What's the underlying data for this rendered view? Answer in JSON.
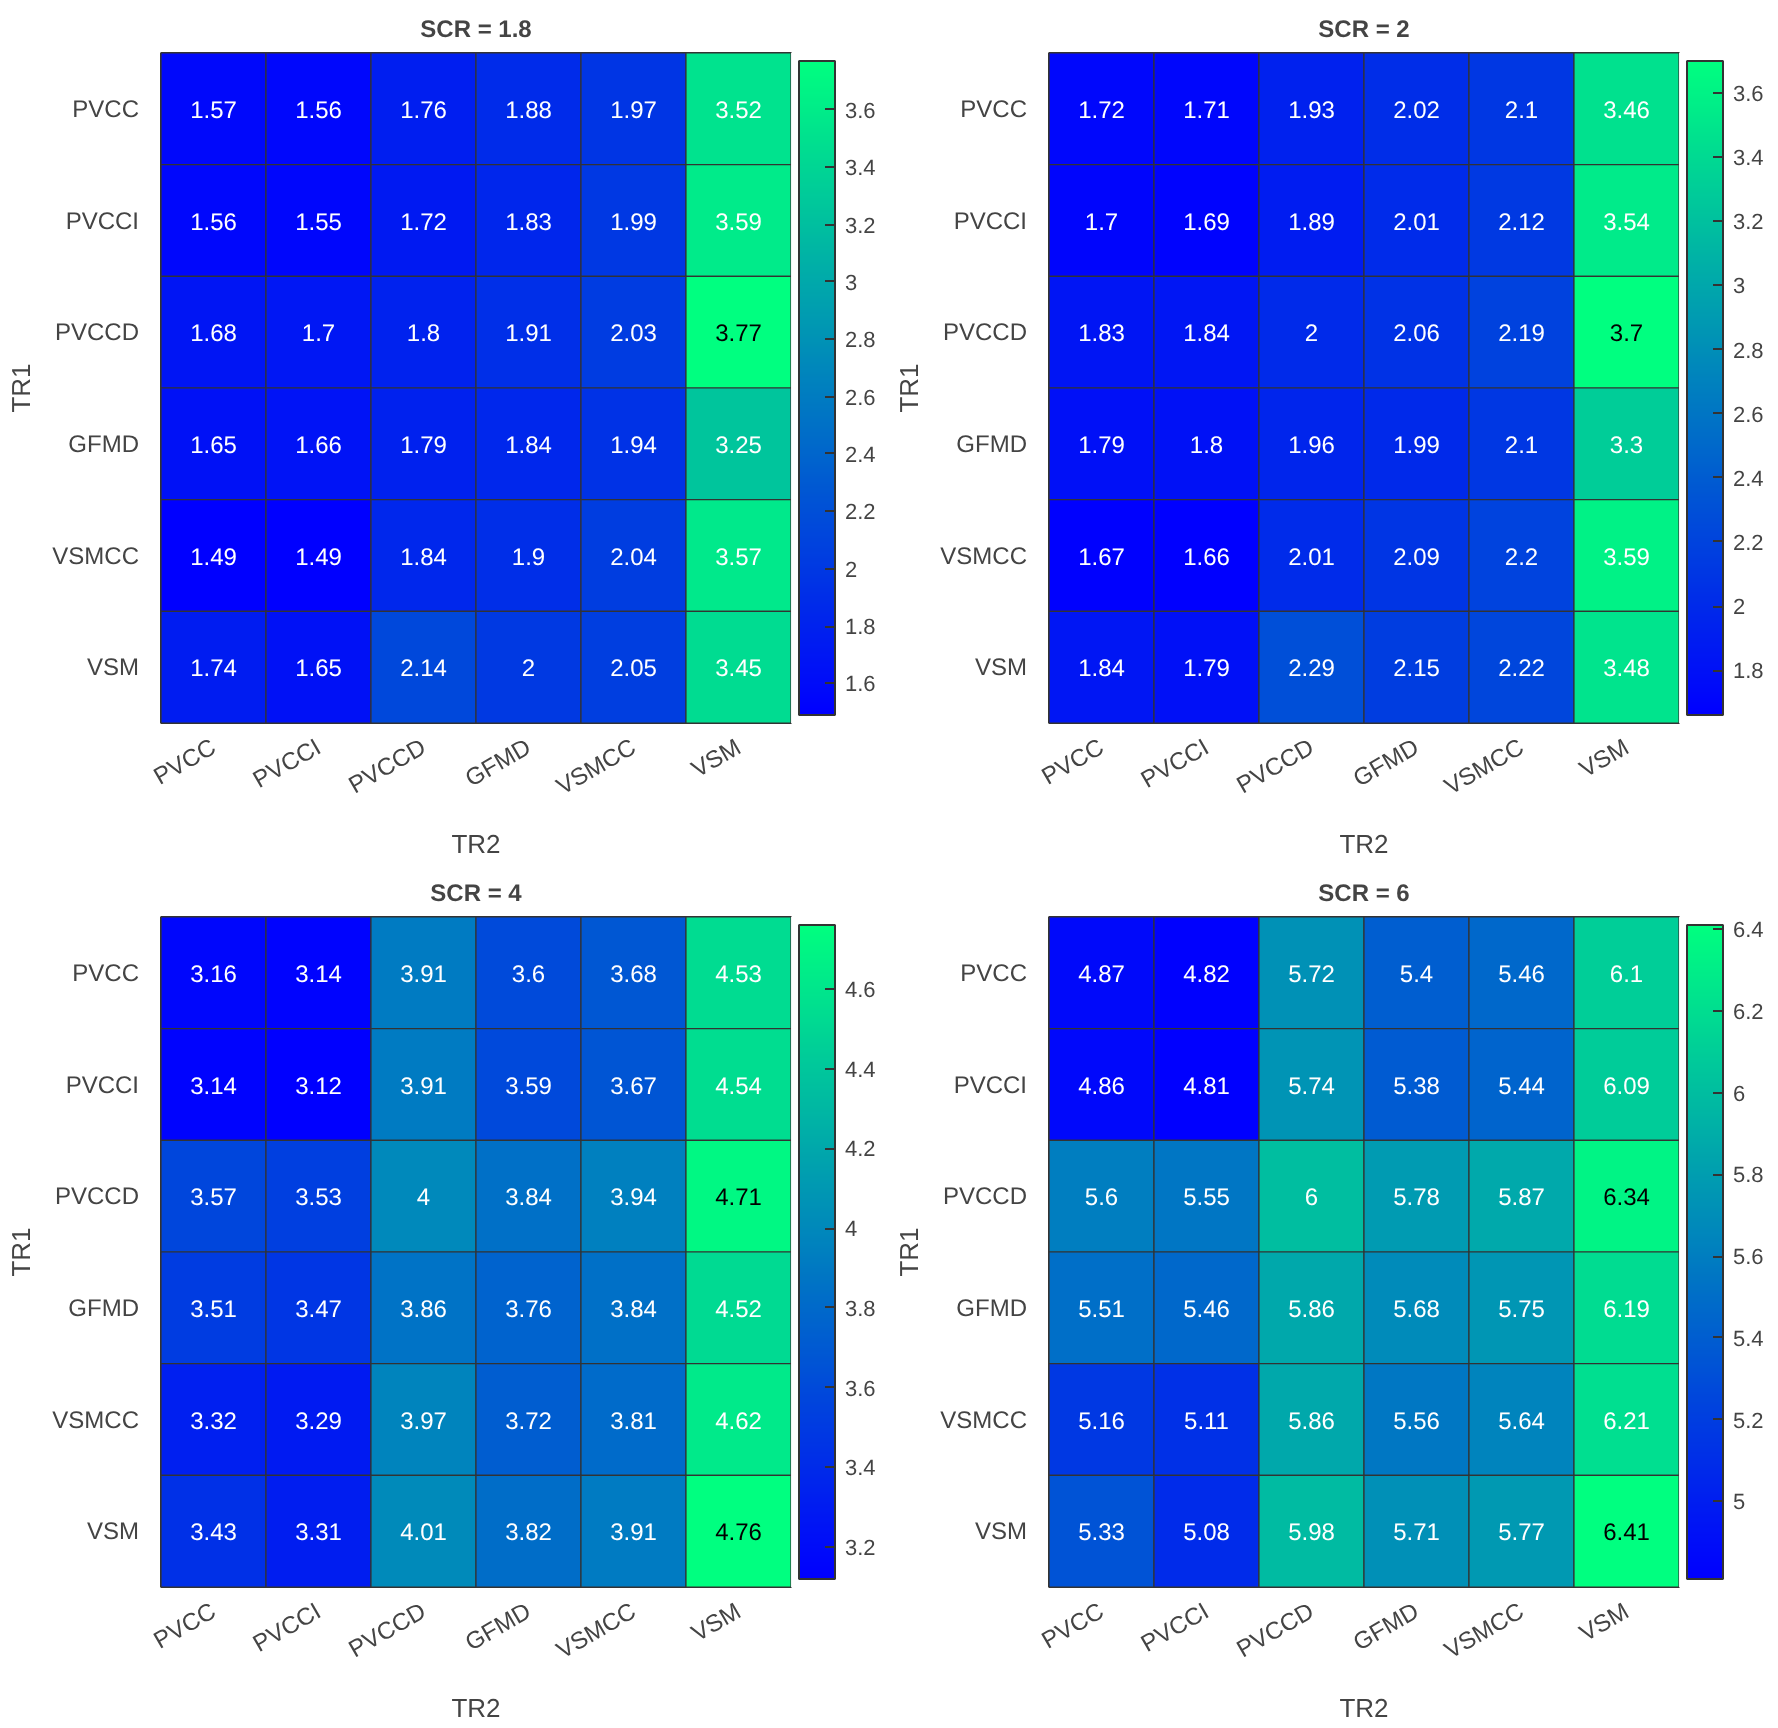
{
  "chart_data": [
    {
      "type": "heatmap",
      "title": "SCR = 1.8",
      "xlabel": "TR2",
      "ylabel": "TR1",
      "data_labels": true,
      "categories": [
        "PVCC",
        "PVCCI",
        "PVCCD",
        "GFMD",
        "VSMCC",
        "VSM"
      ],
      "y_categories": [
        "PVCC",
        "PVCCI",
        "PVCCD",
        "GFMD",
        "VSMCC",
        "VSM"
      ],
      "cells": [
        [
          1.57,
          1.56,
          1.76,
          1.88,
          1.97,
          3.52
        ],
        [
          1.56,
          1.55,
          1.72,
          1.83,
          1.99,
          3.59
        ],
        [
          1.68,
          1.7,
          1.8,
          1.91,
          2.03,
          3.77
        ],
        [
          1.65,
          1.66,
          1.79,
          1.84,
          1.94,
          3.25
        ],
        [
          1.49,
          1.49,
          1.84,
          1.9,
          2.04,
          3.57
        ],
        [
          1.74,
          1.65,
          2.14,
          2,
          2.05,
          3.45
        ]
      ],
      "clim": [
        1.49,
        3.77
      ],
      "cticks": [
        1.6,
        1.8,
        2,
        2.2,
        2.4,
        2.6,
        2.8,
        3,
        3.2,
        3.4,
        3.6
      ]
    },
    {
      "type": "heatmap",
      "title": "SCR = 2",
      "xlabel": "TR2",
      "ylabel": "TR1",
      "data_labels": true,
      "categories": [
        "PVCC",
        "PVCCI",
        "PVCCD",
        "GFMD",
        "VSMCC",
        "VSM"
      ],
      "y_categories": [
        "PVCC",
        "PVCCI",
        "PVCCD",
        "GFMD",
        "VSMCC",
        "VSM"
      ],
      "cells": [
        [
          1.72,
          1.71,
          1.93,
          2.02,
          2.1,
          3.46
        ],
        [
          1.7,
          1.69,
          1.89,
          2.01,
          2.12,
          3.54
        ],
        [
          1.83,
          1.84,
          2,
          2.06,
          2.19,
          3.7
        ],
        [
          1.79,
          1.8,
          1.96,
          1.99,
          2.1,
          3.3
        ],
        [
          1.67,
          1.66,
          2.01,
          2.09,
          2.2,
          3.59
        ],
        [
          1.84,
          1.79,
          2.29,
          2.15,
          2.22,
          3.48
        ]
      ],
      "clim": [
        1.66,
        3.7
      ],
      "cticks": [
        1.8,
        2,
        2.2,
        2.4,
        2.6,
        2.8,
        3,
        3.2,
        3.4,
        3.6
      ]
    },
    {
      "type": "heatmap",
      "title": "SCR = 4",
      "xlabel": "TR2",
      "ylabel": "TR1",
      "data_labels": true,
      "categories": [
        "PVCC",
        "PVCCI",
        "PVCCD",
        "GFMD",
        "VSMCC",
        "VSM"
      ],
      "y_categories": [
        "PVCC",
        "PVCCI",
        "PVCCD",
        "GFMD",
        "VSMCC",
        "VSM"
      ],
      "cells": [
        [
          3.16,
          3.14,
          3.91,
          3.6,
          3.68,
          4.53
        ],
        [
          3.14,
          3.12,
          3.91,
          3.59,
          3.67,
          4.54
        ],
        [
          3.57,
          3.53,
          4,
          3.84,
          3.94,
          4.71
        ],
        [
          3.51,
          3.47,
          3.86,
          3.76,
          3.84,
          4.52
        ],
        [
          3.32,
          3.29,
          3.97,
          3.72,
          3.81,
          4.62
        ],
        [
          3.43,
          3.31,
          4.01,
          3.82,
          3.91,
          4.76
        ]
      ],
      "clim": [
        3.12,
        4.76
      ],
      "cticks": [
        3.2,
        3.4,
        3.6,
        3.8,
        4,
        4.2,
        4.4,
        4.6
      ]
    },
    {
      "type": "heatmap",
      "title": "SCR = 6",
      "xlabel": "TR2",
      "ylabel": "TR1",
      "data_labels": true,
      "categories": [
        "PVCC",
        "PVCCI",
        "PVCCD",
        "GFMD",
        "VSMCC",
        "VSM"
      ],
      "y_categories": [
        "PVCC",
        "PVCCI",
        "PVCCD",
        "GFMD",
        "VSMCC",
        "VSM"
      ],
      "cells": [
        [
          4.87,
          4.82,
          5.72,
          5.4,
          5.46,
          6.1
        ],
        [
          4.86,
          4.81,
          5.74,
          5.38,
          5.44,
          6.09
        ],
        [
          5.6,
          5.55,
          6,
          5.78,
          5.87,
          6.34
        ],
        [
          5.51,
          5.46,
          5.86,
          5.68,
          5.75,
          6.19
        ],
        [
          5.16,
          5.11,
          5.86,
          5.56,
          5.64,
          6.21
        ],
        [
          5.33,
          5.08,
          5.98,
          5.71,
          5.77,
          6.41
        ]
      ],
      "clim": [
        4.81,
        6.41
      ],
      "cticks": [
        5,
        5.2,
        5.4,
        5.6,
        5.8,
        6,
        6.2,
        6.4
      ]
    }
  ]
}
